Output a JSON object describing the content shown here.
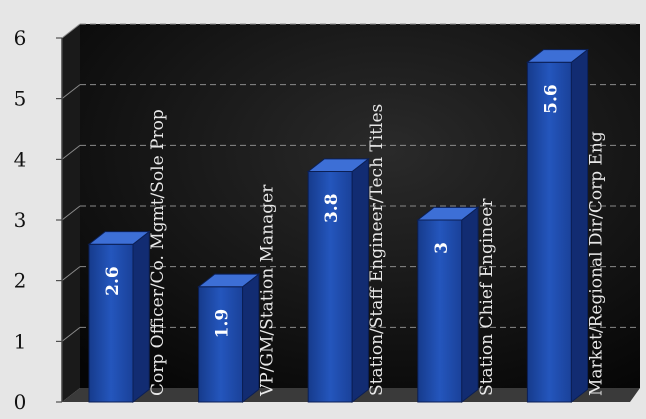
{
  "chart_data": {
    "type": "bar",
    "categories": [
      "Corp Officer/Co. Mgmt/Sole Prop",
      "VP/GM/Station Manager",
      "Station/Staff Engineer/Tech Titles",
      "Station Chief Engineer",
      "Market/Regional Dir/Corp Eng"
    ],
    "values": [
      2.6,
      1.9,
      3.8,
      3,
      5.6
    ],
    "value_labels": [
      "2.6",
      "1.9",
      "3.8",
      "3",
      "5.6"
    ],
    "yticks": [
      "0",
      "1",
      "2",
      "3",
      "4",
      "5",
      "6"
    ],
    "ylim": [
      0,
      6
    ],
    "grid": true,
    "style": "3d-bar",
    "colors": {
      "bar_front": "#1f4aa6",
      "bar_top": "#3d6fd6",
      "bar_side": "#122c72",
      "plot_bg": "#0d0d0d",
      "page_bg": "#e6e6e6",
      "grid": "#8a8a8a",
      "category_text": "#e8e8e8",
      "value_text": "#ffffff",
      "axis_text": "#111111"
    }
  }
}
